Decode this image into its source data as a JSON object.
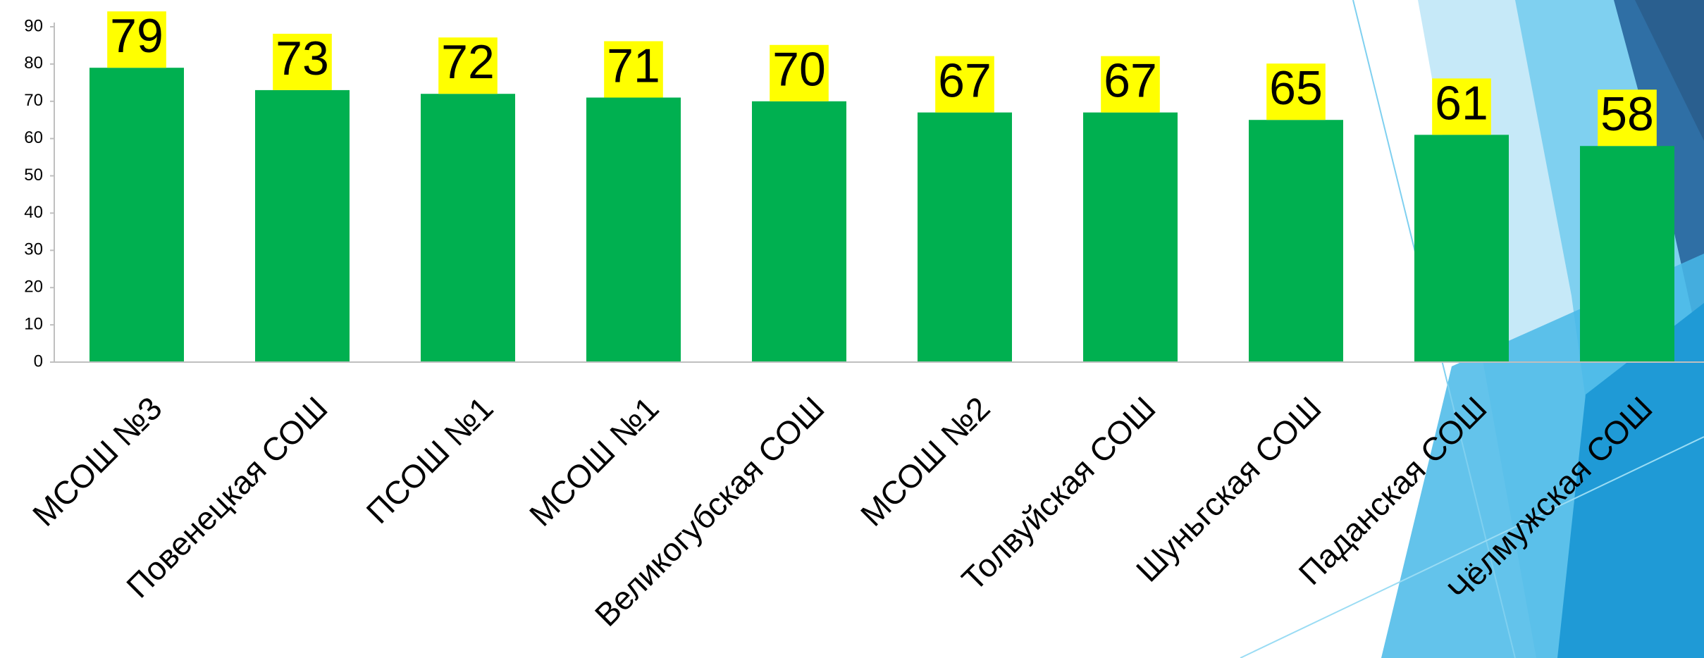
{
  "chart_data": {
    "type": "bar",
    "categories": [
      "МСОШ №3",
      "Повенецкая СОШ",
      "ПСОШ №1",
      "МСОШ №1",
      "Великогубская СОШ",
      "МСОШ №2",
      "Толвуйская СОШ",
      "Шуньгская СОШ",
      "Паданская СОШ",
      "Чёлмужская СОШ"
    ],
    "values": [
      79,
      73,
      72,
      71,
      70,
      67,
      67,
      65,
      61,
      58
    ],
    "color": "#00b050",
    "label_color": "#ffff00",
    "ylim": [
      0,
      90
    ],
    "yticks": [
      0,
      10,
      20,
      30,
      40,
      50,
      60,
      70,
      80,
      90
    ],
    "grid": false
  }
}
